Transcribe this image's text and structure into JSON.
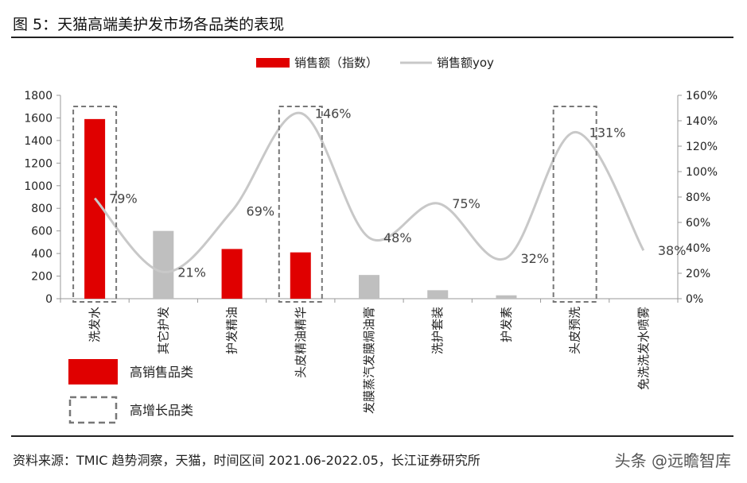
{
  "figure": {
    "title": "图  5：天猫高端美护发市场各品类的表现",
    "source": "资料来源：TMIC 趋势洞察，天猫，时间区间 2021.06-2022.05，长江证券研究所",
    "watermark": "头条 @远瞻智库"
  },
  "chart_data": {
    "type": "bar",
    "categories": [
      "洗发水",
      "其它护发",
      "护发精油",
      "头皮精油精华",
      "发膜蒸汽发膜焗油膏",
      "洗护套装",
      "护发素",
      "头皮预洗",
      "免洗洗发水喷雾"
    ],
    "series": [
      {
        "name": "销售额（指数）",
        "type": "bar",
        "values": [
          1590,
          600,
          440,
          410,
          210,
          75,
          30,
          0,
          0
        ],
        "highlight": [
          true,
          false,
          true,
          true,
          false,
          false,
          false,
          false,
          false
        ]
      },
      {
        "name": "销售额yoy",
        "type": "line",
        "axis": "right",
        "values": [
          79,
          21,
          69,
          146,
          48,
          75,
          32,
          131,
          38
        ],
        "labels": [
          "79%",
          "21%",
          "69%",
          "146%",
          "48%",
          "75%",
          "32%",
          "131%",
          "38%"
        ]
      }
    ],
    "left_axis": {
      "ylim": [
        0,
        1800
      ],
      "ticks": [
        "0",
        "200",
        "400",
        "600",
        "800",
        "1000",
        "1200",
        "1400",
        "1600",
        "1800"
      ]
    },
    "right_axis": {
      "ylim": [
        0,
        160
      ],
      "ticks": [
        "0%",
        "20%",
        "40%",
        "60%",
        "80%",
        "100%",
        "120%",
        "140%",
        "160%"
      ]
    },
    "dashed_boxes": [
      "洗发水",
      "头皮精油精华",
      "头皮预洗"
    ],
    "legend_bottom": {
      "high_sales": "高销售品类",
      "high_growth": "高增长品类"
    },
    "legend_top": {
      "bar": "销售额（指数）",
      "line": "销售额yoy"
    },
    "colors": {
      "highlight": "#e00000",
      "normal": "#bfbfbf",
      "line": "#c8c8c8",
      "box": "#777777"
    }
  }
}
